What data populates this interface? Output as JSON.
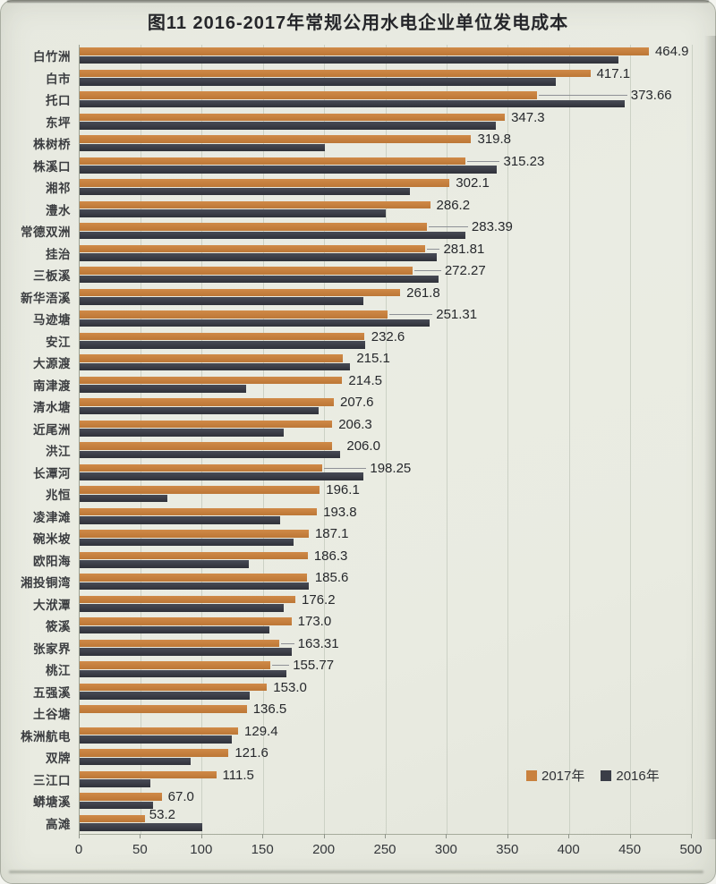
{
  "page": {
    "figure_label": "图11"
  },
  "chart_data": {
    "type": "bar",
    "orientation": "horizontal",
    "title": "图11 2016-2017年常规公用水电企业单位发电成本",
    "categories": [
      "白竹洲",
      "白市",
      "托口",
      "东坪",
      "株树桥",
      "株溪口",
      "湘祁",
      "澧水",
      "常德双洲",
      "挂治",
      "三板溪",
      "新华浯溪",
      "马迹塘",
      "安江",
      "大源渡",
      "南津渡",
      "清水塘",
      "近尾洲",
      "洪江",
      "长潭河",
      "兆恒",
      "凌津滩",
      "碗米坡",
      "欧阳海",
      "湘投铜湾",
      "大洑潭",
      "筱溪",
      "张家界",
      "桃江",
      "五强溪",
      "土谷塘",
      "株洲航电",
      "双牌",
      "三江口",
      "蟒塘溪",
      "高滩"
    ],
    "series": [
      {
        "name": "2017年",
        "color": "#c9813e",
        "values": [
          464.9,
          417.1,
          373.66,
          347.3,
          319.8,
          315.23,
          302.1,
          286.2,
          283.39,
          281.81,
          272.27,
          261.8,
          251.31,
          232.6,
          215.1,
          214.5,
          207.6,
          206.3,
          206.0,
          198.25,
          196.1,
          193.8,
          187.1,
          186.3,
          185.6,
          176.2,
          173.0,
          163.31,
          155.77,
          153.0,
          136.5,
          129.4,
          121.6,
          111.5,
          67.0,
          53.2
        ]
      },
      {
        "name": "2016年",
        "color": "#3a3d47",
        "values": [
          440,
          389,
          445,
          340,
          200,
          341,
          270,
          250,
          315,
          292,
          293,
          232,
          286,
          233,
          221,
          136,
          195,
          167,
          213,
          232,
          72,
          164,
          175,
          138,
          187,
          167,
          155,
          173,
          169,
          139,
          0,
          124,
          91,
          58,
          60,
          100
        ]
      }
    ],
    "value_labels": [
      "464.9",
      "417.1",
      "373.66",
      "347.3",
      "319.8",
      "315.23",
      "302.1",
      "286.2",
      "283.39",
      "281.81",
      "272.27",
      "261.8",
      "251.31",
      "232.6",
      "215.1",
      "214.5",
      "207.6",
      "206.3",
      "206.0",
      "198.25",
      "196.1",
      "193.8",
      "187.1",
      "186.3",
      "185.6",
      "176.2",
      "173.0",
      "163.31",
      "155.77",
      "153.0",
      "136.5",
      "129.4",
      "121.6",
      "111.5",
      "67.0",
      "53.2"
    ],
    "value_labels_series": "2017年",
    "xlim": [
      0,
      500
    ],
    "xticks": [
      0,
      50,
      100,
      150,
      200,
      250,
      300,
      350,
      400,
      450,
      500
    ],
    "grid": true,
    "legend_position": "inside-bottom-right"
  }
}
